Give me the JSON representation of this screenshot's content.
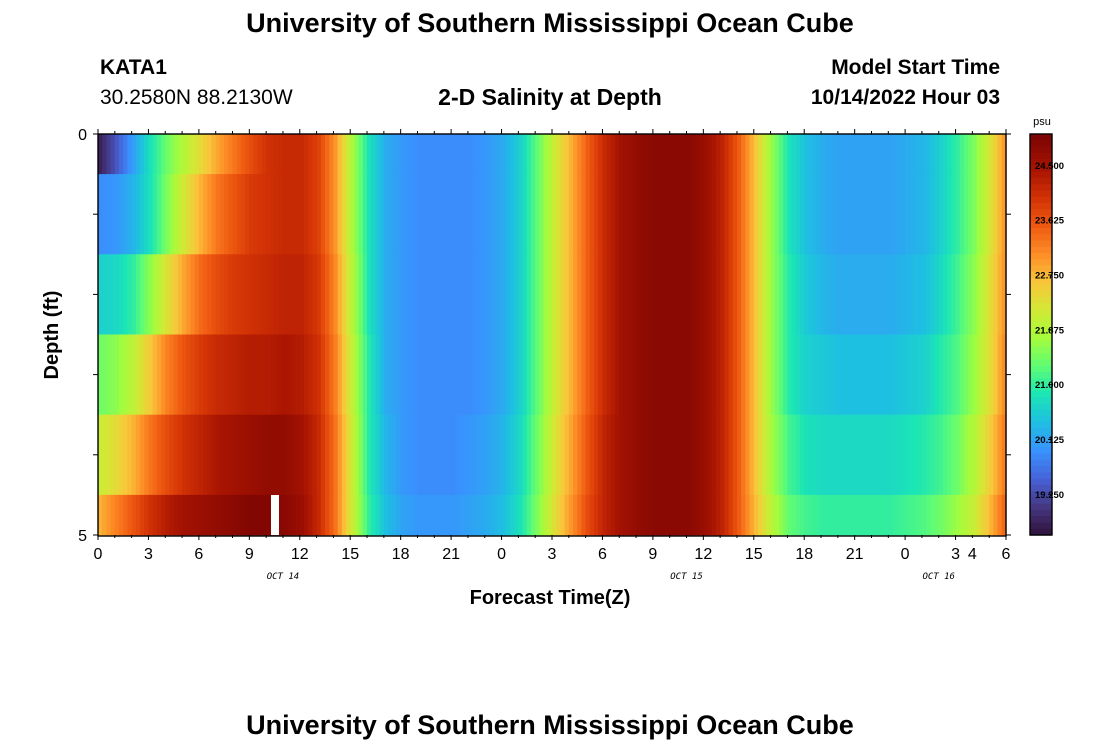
{
  "page": {
    "title": "University of Southern Mississippi Ocean Cube",
    "footer_title": "University of Southern Mississippi Ocean Cube",
    "station": {
      "name": "KATA1",
      "coords": "30.2580N  88.2130W"
    },
    "chart_title": "2-D Salinity at Depth",
    "model_start": {
      "label": "Model Start Time",
      "value": "10/14/2022 Hour 03"
    }
  },
  "chart_data": {
    "type": "heatmap",
    "title": "2-D Salinity at Depth",
    "xlabel": "Forecast Time(Z)",
    "ylabel": "Depth (ft)",
    "x_tick_labels": [
      "0",
      "3",
      "6",
      "9",
      "12",
      "15",
      "18",
      "21",
      "0",
      "3",
      "6",
      "9",
      "12",
      "15",
      "18",
      "21",
      "0",
      "3",
      "4",
      "6"
    ],
    "x_tick_hours": [
      0,
      3,
      6,
      9,
      12,
      15,
      18,
      21,
      24,
      27,
      30,
      33,
      36,
      39,
      42,
      45,
      48,
      51,
      52,
      54
    ],
    "x_range_hours": [
      0,
      54
    ],
    "date_labels": [
      {
        "label": "OCT 14",
        "hour": 11
      },
      {
        "label": "OCT 15",
        "hour": 35
      },
      {
        "label": "OCT 16",
        "hour": 50
      }
    ],
    "y_tick_labels": [
      "0",
      "5"
    ],
    "ylim": [
      0,
      5
    ],
    "depth_levels": [
      0,
      1,
      2,
      3,
      4,
      5
    ],
    "colorbar": {
      "unit": "psu",
      "range": [
        18.6,
        25.0
      ],
      "ticks": [
        "24.500",
        "23.625",
        "22.750",
        "21.875",
        "21.000",
        "20.125",
        "19.250"
      ],
      "tick_values": [
        24.5,
        23.625,
        22.75,
        21.875,
        21.0,
        20.125,
        19.25
      ]
    },
    "salinity_psu_by_depth_and_hour": {
      "hours": [
        0,
        1,
        2,
        3,
        4,
        5,
        6,
        7,
        8,
        9,
        10,
        11,
        12,
        13,
        14,
        15,
        16,
        17,
        18,
        19,
        20,
        21,
        22,
        23,
        24,
        25,
        26,
        27,
        28,
        29,
        30,
        31,
        32,
        33,
        34,
        35,
        36,
        37,
        38,
        39,
        40,
        41,
        42,
        43,
        44,
        45,
        46,
        47,
        48,
        49,
        50,
        51,
        52,
        53,
        54
      ],
      "profiles": [
        [
          18.8,
          19.4,
          20.1,
          20.8,
          21.4,
          21.9,
          22.4,
          22.9,
          23.3,
          23.7,
          24.0,
          24.1,
          24.1,
          23.8,
          23.0,
          21.8,
          20.8,
          20.2,
          20.0,
          19.9,
          19.9,
          19.9,
          19.9,
          20.0,
          20.2,
          20.6,
          21.3,
          22.1,
          22.8,
          23.5,
          24.1,
          24.5,
          24.7,
          24.8,
          24.8,
          24.8,
          24.6,
          24.2,
          23.5,
          22.6,
          21.6,
          20.8,
          20.4,
          20.2,
          20.1,
          20.1,
          20.1,
          20.1,
          20.2,
          20.3,
          20.6,
          21.0,
          21.5,
          22.3,
          23.2
        ],
        [
          19.9,
          20.0,
          20.3,
          20.8,
          21.5,
          22.2,
          22.8,
          23.3,
          23.6,
          23.9,
          24.0,
          24.1,
          24.1,
          23.8,
          23.0,
          21.8,
          20.8,
          20.2,
          20.0,
          19.9,
          19.9,
          19.9,
          19.9,
          20.0,
          20.2,
          20.6,
          21.3,
          22.1,
          22.8,
          23.5,
          24.1,
          24.5,
          24.7,
          24.8,
          24.8,
          24.8,
          24.6,
          24.2,
          23.5,
          22.6,
          21.6,
          20.8,
          20.4,
          20.2,
          20.1,
          20.1,
          20.1,
          20.1,
          20.2,
          20.3,
          20.6,
          21.0,
          21.5,
          22.3,
          23.2
        ],
        [
          20.6,
          20.7,
          21.0,
          21.6,
          22.3,
          22.9,
          23.4,
          23.7,
          23.9,
          24.0,
          24.1,
          24.2,
          24.2,
          23.9,
          23.1,
          21.9,
          20.8,
          20.2,
          20.0,
          19.9,
          19.9,
          19.9,
          19.9,
          20.0,
          20.2,
          20.6,
          21.3,
          22.1,
          22.8,
          23.5,
          24.1,
          24.5,
          24.7,
          24.8,
          24.8,
          24.8,
          24.6,
          24.2,
          23.5,
          22.6,
          21.6,
          20.9,
          20.5,
          20.3,
          20.2,
          20.2,
          20.2,
          20.2,
          20.3,
          20.4,
          20.7,
          21.1,
          21.6,
          22.4,
          23.2
        ],
        [
          21.4,
          21.6,
          22.0,
          22.6,
          23.2,
          23.6,
          23.9,
          24.1,
          24.2,
          24.3,
          24.3,
          24.4,
          24.3,
          24.0,
          23.2,
          22.0,
          20.9,
          20.2,
          20.0,
          19.9,
          19.9,
          19.9,
          19.9,
          20.0,
          20.2,
          20.6,
          21.3,
          22.1,
          22.8,
          23.5,
          24.1,
          24.5,
          24.7,
          24.8,
          24.8,
          24.8,
          24.6,
          24.2,
          23.5,
          22.6,
          21.6,
          20.9,
          20.6,
          20.5,
          20.4,
          20.4,
          20.4,
          20.4,
          20.5,
          20.6,
          20.9,
          21.2,
          21.7,
          22.4,
          23.3
        ],
        [
          22.1,
          22.4,
          22.8,
          23.3,
          23.7,
          24.0,
          24.2,
          24.4,
          24.5,
          24.6,
          24.7,
          24.7,
          24.5,
          24.1,
          23.3,
          22.1,
          20.9,
          20.3,
          20.0,
          19.9,
          19.9,
          19.9,
          20.0,
          20.1,
          20.3,
          20.7,
          21.4,
          22.2,
          22.9,
          23.6,
          24.2,
          24.5,
          24.7,
          24.8,
          24.8,
          24.8,
          24.6,
          24.2,
          23.5,
          22.6,
          21.7,
          21.1,
          20.8,
          20.7,
          20.7,
          20.7,
          20.7,
          20.7,
          20.8,
          20.9,
          21.1,
          21.4,
          21.9,
          22.6,
          23.4
        ],
        [
          22.8,
          23.2,
          23.6,
          24.0,
          24.3,
          24.5,
          24.6,
          24.7,
          24.8,
          24.9,
          24.9,
          24.8,
          24.6,
          24.1,
          23.3,
          22.1,
          21.0,
          20.4,
          20.1,
          20.0,
          20.0,
          20.0,
          20.1,
          20.2,
          20.4,
          20.8,
          21.5,
          22.3,
          23.0,
          23.7,
          24.2,
          24.5,
          24.7,
          24.8,
          24.8,
          24.8,
          24.6,
          24.2,
          23.5,
          22.7,
          21.9,
          21.3,
          21.1,
          21.0,
          21.0,
          21.0,
          21.0,
          21.0,
          21.1,
          21.2,
          21.4,
          21.7,
          22.1,
          22.8,
          23.6
        ]
      ]
    }
  }
}
